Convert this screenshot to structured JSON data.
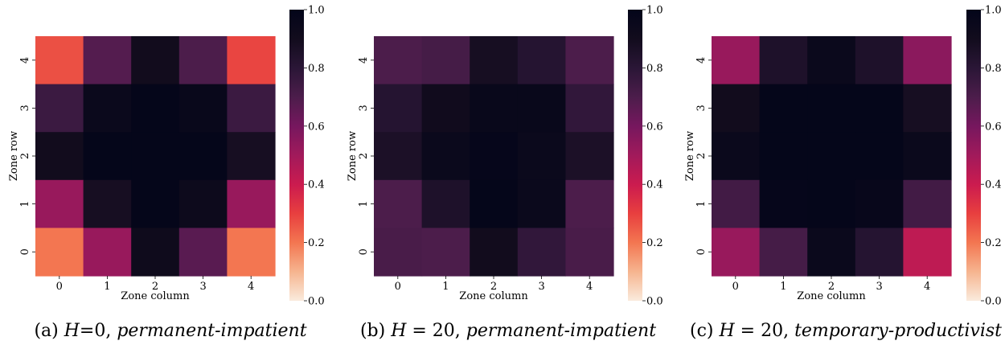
{
  "chart_data": [
    {
      "type": "heatmap",
      "caption_prefix": "(a) ",
      "caption_var": "H",
      "caption_eq": "=0, ",
      "caption_name": "permanent-impatient",
      "xlabel": "Zone column",
      "ylabel": "Zone row",
      "x_categories": [
        "0",
        "1",
        "2",
        "3",
        "4"
      ],
      "y_categories": [
        "0",
        "1",
        "2",
        "3",
        "4"
      ],
      "rows_top_to_bottom": [
        [
          0.27,
          0.68,
          0.9,
          0.7,
          0.29
        ],
        [
          0.75,
          0.95,
          0.99,
          0.96,
          0.75
        ],
        [
          0.9,
          0.99,
          0.99,
          0.99,
          0.88
        ],
        [
          0.52,
          0.88,
          0.99,
          0.93,
          0.52
        ],
        [
          0.2,
          0.52,
          0.92,
          0.67,
          0.2
        ]
      ],
      "colorbar_ticks": [
        "0.0",
        "0.2",
        "0.4",
        "0.6",
        "0.8",
        "1.0"
      ],
      "vmin": 0.0,
      "vmax": 1.0
    },
    {
      "type": "heatmap",
      "caption_prefix": "(b) ",
      "caption_var": "H",
      "caption_eq": " = 20, ",
      "caption_name": "permanent-impatient",
      "xlabel": "Zone column",
      "ylabel": "Zone row",
      "x_categories": [
        "0",
        "1",
        "2",
        "3",
        "4"
      ],
      "y_categories": [
        "0",
        "1",
        "2",
        "3",
        "4"
      ],
      "rows_top_to_bottom": [
        [
          0.7,
          0.72,
          0.88,
          0.82,
          0.7
        ],
        [
          0.82,
          0.91,
          0.96,
          0.96,
          0.78
        ],
        [
          0.86,
          0.95,
          0.98,
          0.95,
          0.86
        ],
        [
          0.7,
          0.85,
          0.99,
          0.95,
          0.7
        ],
        [
          0.71,
          0.7,
          0.9,
          0.78,
          0.71
        ]
      ],
      "colorbar_ticks": [
        "0.0",
        "0.2",
        "0.4",
        "0.6",
        "0.8",
        "1.0"
      ],
      "vmin": 0.0,
      "vmax": 1.0
    },
    {
      "type": "heatmap",
      "caption_prefix": "(c) ",
      "caption_var": "H",
      "caption_eq": " = 20, ",
      "caption_name": "temporary-productivist",
      "xlabel": "Zone column",
      "ylabel": "Zone row",
      "x_categories": [
        "0",
        "1",
        "2",
        "3",
        "4"
      ],
      "y_categories": [
        "0",
        "1",
        "2",
        "3",
        "4"
      ],
      "rows_top_to_bottom": [
        [
          0.52,
          0.85,
          0.95,
          0.85,
          0.55
        ],
        [
          0.9,
          0.99,
          0.99,
          0.99,
          0.88
        ],
        [
          0.95,
          0.99,
          0.99,
          0.99,
          0.95
        ],
        [
          0.73,
          0.98,
          0.99,
          0.97,
          0.73
        ],
        [
          0.52,
          0.72,
          0.95,
          0.82,
          0.43
        ]
      ],
      "colorbar_ticks": [
        "0.0",
        "0.2",
        "0.4",
        "0.6",
        "0.8",
        "1.0"
      ],
      "vmin": 0.0,
      "vmax": 1.0
    }
  ]
}
